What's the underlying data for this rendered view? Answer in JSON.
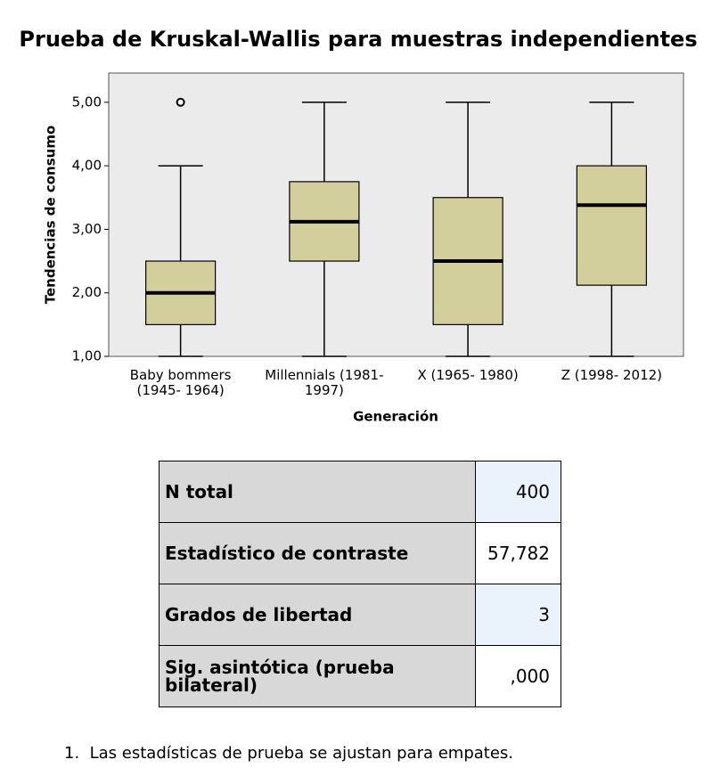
{
  "chart_data": {
    "type": "box",
    "title": "Prueba de Kruskal-Wallis para muestras independientes",
    "xlabel": "Generación",
    "ylabel": "Tendencias de consumo",
    "categories": [
      "Baby bommers (1945- 1964)",
      "Millennials (1981- 1997)",
      "X (1965- 1980)",
      "Z (1998- 2012)"
    ],
    "whislo": [
      1,
      1,
      1,
      1
    ],
    "q1": [
      1.5,
      2.5,
      1.5,
      2.12
    ],
    "median": [
      2,
      3.12,
      2.5,
      3.38
    ],
    "q3": [
      2.5,
      3.75,
      3.5,
      4
    ],
    "whishi": [
      4,
      5,
      5,
      5
    ],
    "fliers": [
      [
        5
      ],
      [],
      [],
      []
    ],
    "color": "#d3cf9c",
    "ylim": [
      1,
      5.46
    ],
    "yticks": [
      {
        "value": 1,
        "label": "1,00"
      },
      {
        "value": 2,
        "label": "2,00"
      },
      {
        "value": 3,
        "label": "3,00"
      },
      {
        "value": 4,
        "label": "4,00"
      },
      {
        "value": 5,
        "label": "5,00"
      }
    ]
  },
  "table": {
    "rows": [
      [
        "N total",
        "400"
      ],
      [
        "Estadístico de contraste",
        "57,782"
      ],
      [
        "Grados de libertad",
        "3"
      ],
      [
        "Sig. asintótica (prueba bilateral)",
        ",000"
      ]
    ]
  },
  "footnote": "1.  Las estadísticas de prueba se ajustan para empates."
}
